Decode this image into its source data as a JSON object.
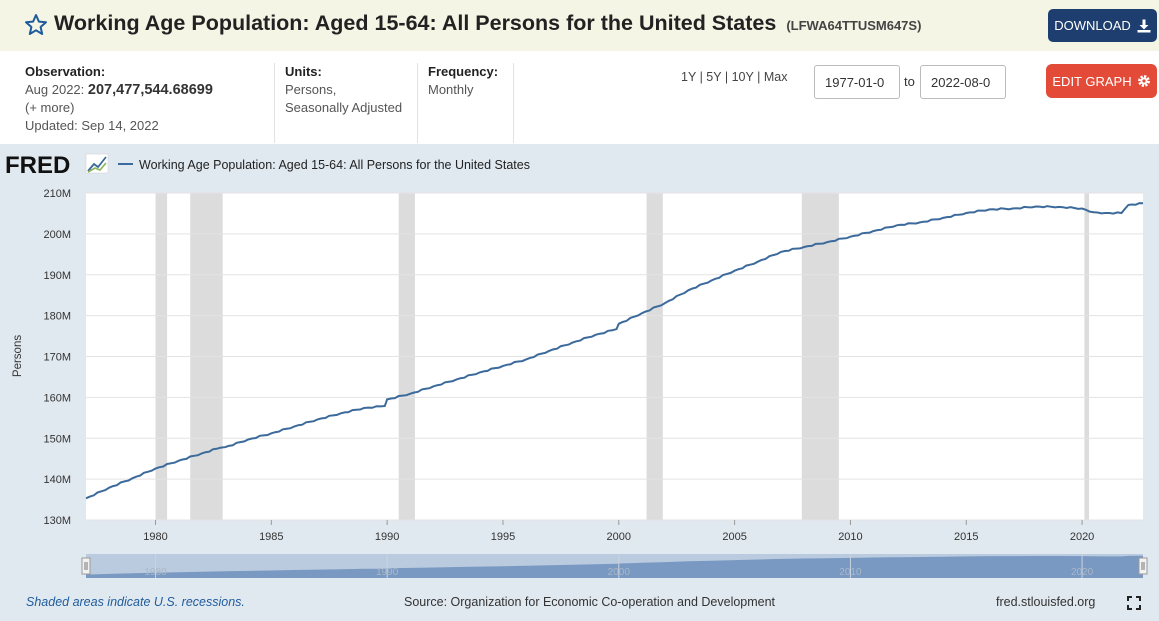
{
  "header": {
    "title": "Working Age Population: Aged 15-64: All Persons for the United States",
    "series_id": "(LFWA64TTUSM647S)",
    "download_label": "DOWNLOAD",
    "star_icon": "star-outline-icon",
    "download_icon": "download-icon"
  },
  "meta": {
    "observation_label": "Observation:",
    "observation_date": "Aug 2022:",
    "observation_value": "207,477,544.68699",
    "more_label": "(+ more)",
    "updated": "Updated: Sep 14, 2022",
    "units_label": "Units:",
    "units_line1": "Persons,",
    "units_line2": "Seasonally Adjusted",
    "frequency_label": "Frequency:",
    "frequency_value": "Monthly"
  },
  "controls": {
    "range_1y": "1Y",
    "range_5y": "5Y",
    "range_10y": "10Y",
    "range_max": "Max",
    "separator": "|",
    "start_date": "1977-01-0",
    "to_label": "to",
    "end_date": "2022-08-0",
    "edit_graph_label": "EDIT GRAPH",
    "gear_icon": "gear-icon"
  },
  "chart_data": {
    "type": "line",
    "logo": "FRED",
    "legend_label": "Working Age Population: Aged 15-64: All Persons for the United States",
    "legend_placement": "top-left",
    "ylabel": "Persons",
    "xlabel": "",
    "ylim": [
      130,
      210
    ],
    "y_ticks": [
      "130M",
      "140M",
      "150M",
      "160M",
      "170M",
      "180M",
      "190M",
      "200M",
      "210M"
    ],
    "x_ticks": [
      "1980",
      "1985",
      "1990",
      "1995",
      "2000",
      "2005",
      "2010",
      "2015",
      "2020"
    ],
    "xlim": [
      1977.0,
      2022.63
    ],
    "series_color": "#3b6a9b",
    "recession_color": "#dcdcdc",
    "recessions": [
      [
        1980.0,
        1980.5
      ],
      [
        1981.5,
        1982.9
      ],
      [
        1990.5,
        1991.2
      ],
      [
        2001.2,
        2001.9
      ],
      [
        2007.9,
        2009.5
      ],
      [
        2020.1,
        2020.3
      ]
    ],
    "series": [
      {
        "x": [
          1977.0,
          1978.0,
          1979.0,
          1980.0,
          1981.0,
          1982.0,
          1982.8,
          1983.0,
          1984.0,
          1985.0,
          1986.0,
          1987.0,
          1988.0,
          1989.0,
          1989.9,
          1990.0,
          1991.0,
          1992.0,
          1993.0,
          1994.0,
          1995.0,
          1996.0,
          1997.0,
          1998.0,
          1999.0,
          1999.9,
          2000.0,
          2001.0,
          2002.0,
          2003.0,
          2004.0,
          2005.0,
          2006.0,
          2007.0,
          2008.0,
          2009.0,
          2010.0,
          2011.0,
          2012.0,
          2013.0,
          2014.0,
          2015.0,
          2016.0,
          2017.0,
          2018.0,
          2019.0,
          2020.0,
          2020.5,
          2021.0,
          2021.7,
          2022.0,
          2022.63
        ],
        "values": [
          135.3,
          137.9,
          140.2,
          142.6,
          144.5,
          146.3,
          147.7,
          147.8,
          149.7,
          151.2,
          152.9,
          154.6,
          156.1,
          157.4,
          157.9,
          159.5,
          160.9,
          162.7,
          164.4,
          166.1,
          167.7,
          169.3,
          171.4,
          173.4,
          175.3,
          176.7,
          178.0,
          180.6,
          183.1,
          186.2,
          188.6,
          191.0,
          193.2,
          195.6,
          196.8,
          198.0,
          199.3,
          200.7,
          202.1,
          202.8,
          203.9,
          205.1,
          206.0,
          206.2,
          206.7,
          206.6,
          206.2,
          205.3,
          205.1,
          205.1,
          207.1,
          207.48
        ]
      }
    ],
    "navigator_ticks": [
      "1980",
      "1990",
      "2000",
      "2010",
      "2020"
    ]
  },
  "footer": {
    "recession_note": "Shaded areas indicate U.S. recessions.",
    "source": "Source: Organization for Economic Co-operation and Development",
    "site": "fred.stlouisfed.org",
    "fullscreen_icon": "fullscreen-icon"
  }
}
